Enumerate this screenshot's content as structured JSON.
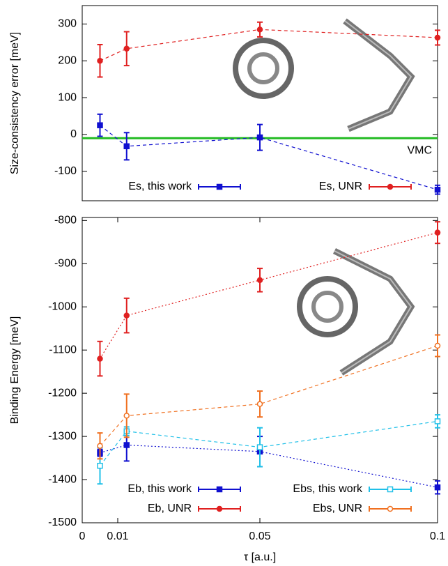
{
  "chart_data": [
    {
      "type": "line",
      "ylabel": "Size-consistency error [meV]",
      "x": [
        0.005,
        0.0125,
        0.05,
        0.1
      ],
      "xlim": [
        0,
        0.1
      ],
      "ylim": [
        -180,
        350
      ],
      "yticks": [
        -100,
        0,
        100,
        200,
        300
      ],
      "legend_loc": "lower",
      "legend_rows": 1,
      "hlines": [
        {
          "y": -10,
          "color": "#22bb22",
          "label": "VMC"
        }
      ],
      "series": [
        {
          "name": "Es, this work",
          "color": "#1010d0",
          "marker": "square",
          "linestyle": "dashed",
          "values": [
            25,
            -32,
            -8,
            -150
          ],
          "errors": [
            30,
            37,
            35,
            12
          ]
        },
        {
          "name": "Es, UNR",
          "color": "#e02020",
          "marker": "circle",
          "linestyle": "dashed",
          "values": [
            200,
            233,
            285,
            263
          ],
          "errors": [
            44,
            46,
            20,
            20
          ]
        }
      ]
    },
    {
      "type": "line",
      "ylabel": "Binding Energy [meV]",
      "xlabel": "τ [a.u.]",
      "x": [
        0.005,
        0.0125,
        0.05,
        0.1
      ],
      "xlim": [
        0,
        0.1
      ],
      "xticks": [
        0,
        0.01,
        0.05,
        0.1
      ],
      "ylim": [
        -1500,
        -793
      ],
      "yticks": [
        -1500,
        -1400,
        -1300,
        -1200,
        -1100,
        -1000,
        -900,
        -800
      ],
      "legend_loc": "lower",
      "legend_rows": 2,
      "series": [
        {
          "name": "Eb, this work",
          "color": "#1010d0",
          "marker": "square",
          "linestyle": "dotted",
          "values": [
            -1338,
            -1320,
            -1335,
            -1418
          ],
          "errors": [
            8,
            37,
            35,
            15
          ]
        },
        {
          "name": "Eb, UNR",
          "color": "#e02020",
          "marker": "circle",
          "linestyle": "dotted",
          "values": [
            -1120,
            -1020,
            -938,
            -828
          ],
          "errors": [
            40,
            40,
            27,
            25
          ]
        },
        {
          "name": "Ebs, this work",
          "color": "#20c0e8",
          "marker": "open-square",
          "linestyle": "dashed",
          "values": [
            -1368,
            -1288,
            -1325,
            -1265
          ],
          "errors": [
            42,
            10,
            45,
            15
          ]
        },
        {
          "name": "Ebs, UNR",
          "color": "#f07020",
          "marker": "open-circle",
          "linestyle": "dashed",
          "values": [
            -1322,
            -1252,
            -1225,
            -1090
          ],
          "errors": [
            30,
            50,
            30,
            25
          ]
        }
      ]
    }
  ]
}
